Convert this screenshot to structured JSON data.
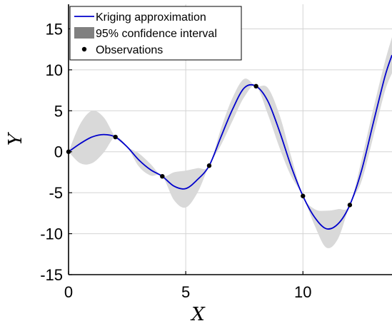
{
  "chart_data": {
    "type": "line",
    "xlabel": "X",
    "ylabel": "Y",
    "xlim": [
      0,
      13.8
    ],
    "ylim": [
      -15,
      18
    ],
    "xticks": [
      0,
      5,
      10
    ],
    "yticks": [
      -15,
      -10,
      -5,
      0,
      5,
      10,
      15
    ],
    "grid": true,
    "legend_position": "top-left",
    "legend": {
      "entries": [
        {
          "label": "Kriging approximation",
          "kind": "line",
          "color": "#0000cc"
        },
        {
          "label": "95% confidence interval",
          "kind": "patch",
          "color": "#808080"
        },
        {
          "label": "Observations",
          "kind": "marker",
          "color": "#000000"
        }
      ]
    },
    "observations": {
      "x": [
        0,
        2,
        4,
        6,
        8,
        10,
        12
      ],
      "y": [
        0,
        1.8,
        -3.0,
        -1.7,
        8.0,
        -5.4,
        -6.5
      ]
    },
    "series": [
      {
        "name": "Kriging approximation",
        "color": "#0000cc",
        "x": [
          0,
          0.5,
          1.0,
          1.5,
          2.0,
          2.5,
          3.0,
          3.5,
          4.0,
          4.5,
          5.0,
          5.5,
          6.0,
          6.5,
          7.0,
          7.5,
          8.0,
          8.5,
          9.0,
          9.5,
          10.0,
          10.5,
          11.0,
          11.5,
          12.0,
          12.5,
          13.0,
          13.5,
          13.8
        ],
        "y": [
          0,
          1.0,
          1.8,
          2.1,
          1.8,
          0.6,
          -1.0,
          -2.2,
          -3.0,
          -4.2,
          -4.5,
          -3.4,
          -1.7,
          1.8,
          5.2,
          7.8,
          8.0,
          6.2,
          2.5,
          -1.8,
          -5.4,
          -8.0,
          -9.4,
          -8.8,
          -6.5,
          -2.3,
          3.5,
          9.2,
          11.8
        ]
      },
      {
        "name": "95% confidence interval",
        "color": "#d9d9d9",
        "x": [
          0,
          0.5,
          1.0,
          1.5,
          2.0,
          2.5,
          3.0,
          3.5,
          4.0,
          4.5,
          5.0,
          5.5,
          6.0,
          6.5,
          7.0,
          7.5,
          8.0,
          8.5,
          9.0,
          9.5,
          10.0,
          10.5,
          11.0,
          11.5,
          12.0,
          12.5,
          13.0,
          13.5,
          13.8
        ],
        "upper": [
          0,
          3.4,
          5.0,
          4.2,
          1.8,
          0.6,
          -0.2,
          -1.5,
          -3.0,
          -2.5,
          -2.3,
          -2.0,
          -1.7,
          2.8,
          6.6,
          8.9,
          8.0,
          7.8,
          4.5,
          -0.6,
          -5.4,
          -7.0,
          -7.2,
          -7.0,
          -6.5,
          -1.0,
          5.2,
          11.0,
          14.0
        ],
        "lower": [
          0,
          -1.4,
          -1.4,
          -0.1,
          1.8,
          0.6,
          -1.8,
          -2.9,
          -3.0,
          -5.9,
          -6.8,
          -5.0,
          -1.7,
          0.8,
          3.8,
          6.7,
          8.0,
          4.6,
          0.5,
          -3.0,
          -5.4,
          -9.0,
          -11.7,
          -10.6,
          -6.5,
          -3.6,
          1.8,
          7.4,
          9.6
        ]
      }
    ]
  }
}
